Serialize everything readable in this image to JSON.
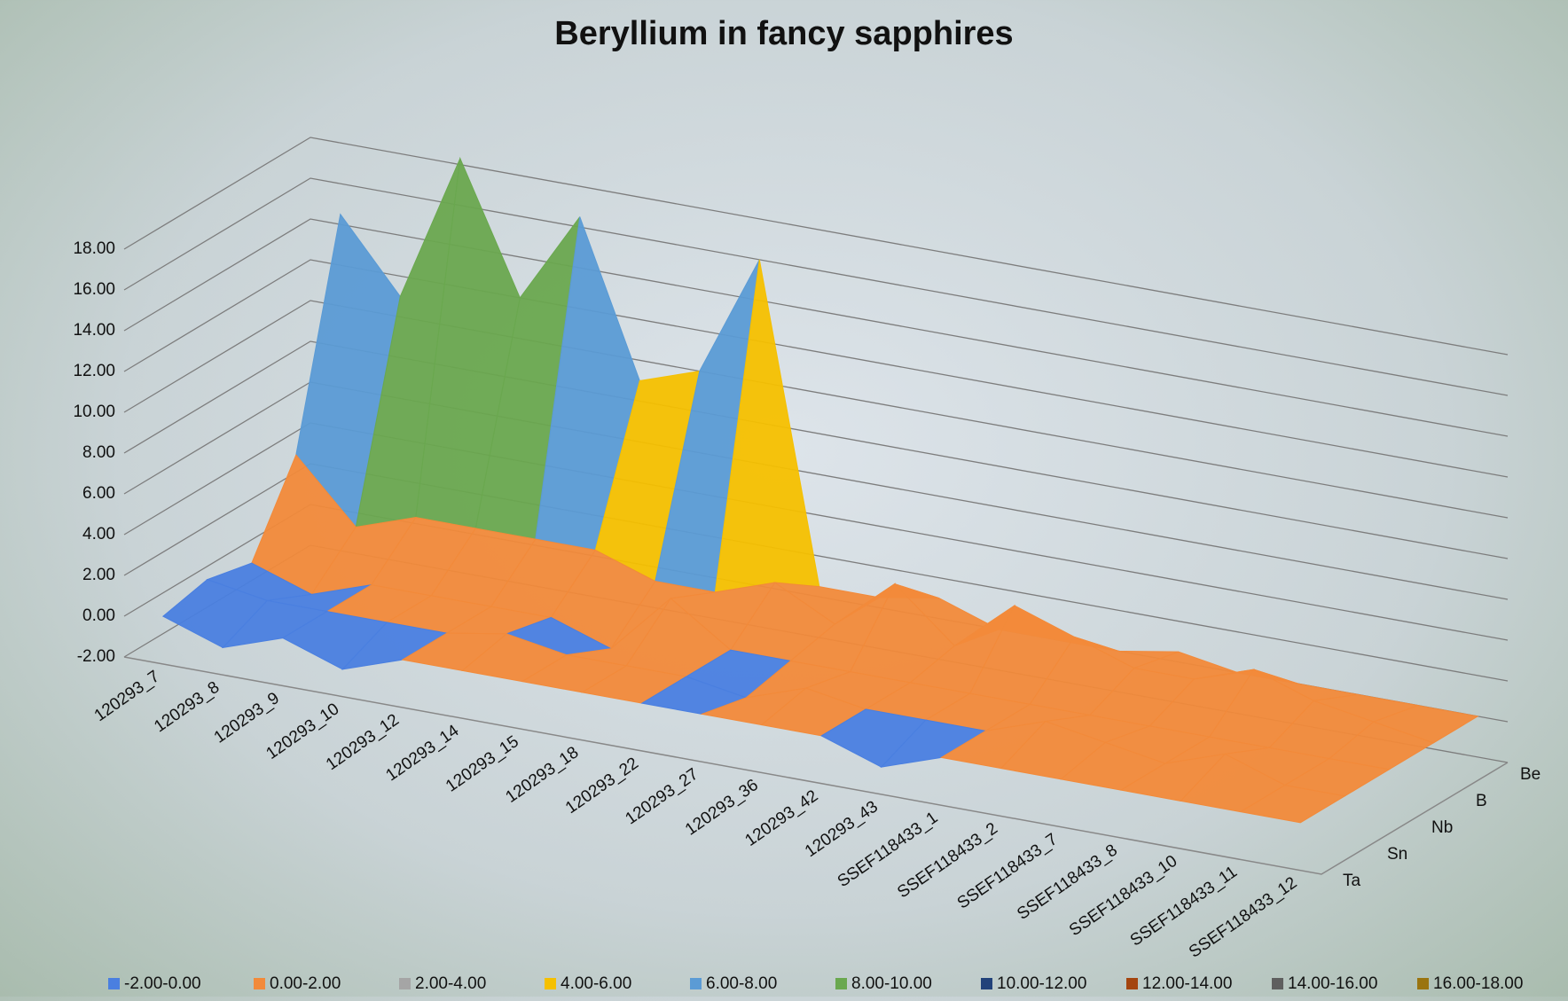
{
  "chart_data": {
    "type": "surface3d",
    "title": "Beryllium in fancy sapphires",
    "categories": [
      "120293_7",
      "120293_8",
      "120293_9",
      "120293_10",
      "120293_12",
      "120293_14",
      "120293_15",
      "120293_18",
      "120293_22",
      "120293_27",
      "120293_36",
      "120293_42",
      "120293_43",
      "SSEF118433_1",
      "SSEF118433_2",
      "SSEF118433_7",
      "SSEF118433_8",
      "SSEF118433_10",
      "SSEF118433_11",
      "SSEF118433_12"
    ],
    "series": [
      {
        "name": "Ta",
        "values": [
          0,
          -1,
          0,
          -1,
          0,
          0,
          0,
          0,
          0,
          0,
          0,
          0,
          -1,
          0,
          0,
          0,
          0,
          0,
          0,
          0
        ]
      },
      {
        "name": "Sn",
        "values": [
          0.5,
          0,
          0,
          0,
          0,
          0.5,
          0,
          0,
          0,
          -0.5,
          0.5,
          0,
          0,
          0,
          1,
          0.5,
          0,
          1,
          0,
          0
        ]
      },
      {
        "name": "Nb",
        "values": [
          0,
          -1,
          0,
          0,
          0,
          0,
          -1,
          2,
          0,
          0,
          0,
          0,
          0,
          0,
          0,
          0,
          0,
          0,
          0,
          0
        ]
      },
      {
        "name": "B",
        "values": [
          4,
          1,
          2,
          2,
          2,
          2,
          1,
          1,
          2,
          0.5,
          3,
          0.5,
          3,
          2,
          1,
          1,
          2,
          1,
          0.5,
          0
        ]
      },
      {
        "name": "Be",
        "values": [
          14.5,
          11,
          18.3,
          12,
          16.5,
          9,
          10,
          16,
          0.5,
          0.5,
          1,
          0,
          0,
          0,
          0.5,
          0,
          0,
          0,
          0,
          0
        ]
      }
    ],
    "zlim": [
      -2,
      18
    ],
    "zticks": [
      {
        "value": -2,
        "label": "-2.00"
      },
      {
        "value": 0,
        "label": "0.00"
      },
      {
        "value": 2,
        "label": "2.00"
      },
      {
        "value": 4,
        "label": "4.00"
      },
      {
        "value": 6,
        "label": "6.00"
      },
      {
        "value": 8,
        "label": "8.00"
      },
      {
        "value": 10,
        "label": "10.00"
      },
      {
        "value": 12,
        "label": "12.00"
      },
      {
        "value": 14,
        "label": "14.00"
      },
      {
        "value": 16,
        "label": "16.00"
      },
      {
        "value": 18,
        "label": "18.00"
      }
    ],
    "bands": [
      {
        "label": "-2.00-0.00",
        "color": "#4a7fe0"
      },
      {
        "label": "0.00-2.00",
        "color": "#f28a3a"
      },
      {
        "label": "2.00-4.00",
        "color": "#a5a5a5"
      },
      {
        "label": "4.00-6.00",
        "color": "#f5c000"
      },
      {
        "label": "6.00-8.00",
        "color": "#5b9bd5"
      },
      {
        "label": "8.00-10.00",
        "color": "#6aa84f"
      },
      {
        "label": "10.00-12.00",
        "color": "#22427a"
      },
      {
        "label": "12.00-14.00",
        "color": "#a4450f"
      },
      {
        "label": "14.00-16.00",
        "color": "#5f5f5f"
      },
      {
        "label": "16.00-18.00",
        "color": "#9a7410"
      }
    ],
    "grid": true
  }
}
